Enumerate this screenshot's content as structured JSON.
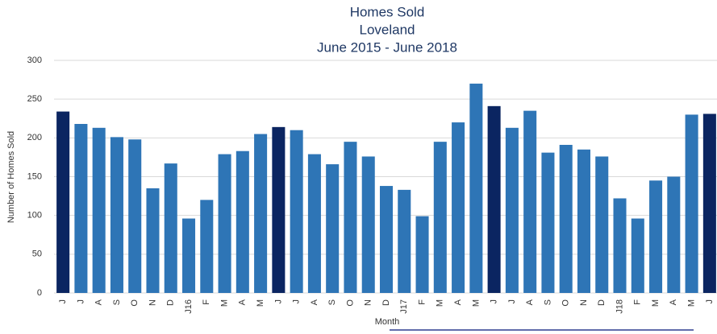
{
  "chart_data": {
    "type": "bar",
    "title": [
      "Homes Sold",
      "Loveland",
      "June 2015 - June 2018"
    ],
    "x_label": "Month",
    "y_label": "Number of Homes Sold",
    "categories": [
      "J",
      "J",
      "A",
      "S",
      "O",
      "N",
      "D",
      "J16",
      "F",
      "M",
      "A",
      "M",
      "J",
      "J",
      "A",
      "S",
      "O",
      "N",
      "D",
      "J17",
      "F",
      "M",
      "A",
      "M",
      "J",
      "J",
      "A",
      "S",
      "O",
      "N",
      "D",
      "J18",
      "F",
      "M",
      "A",
      "M",
      "J"
    ],
    "values": [
      234,
      218,
      213,
      201,
      198,
      135,
      167,
      96,
      120,
      179,
      183,
      205,
      214,
      210,
      179,
      166,
      195,
      176,
      138,
      133,
      99,
      195,
      220,
      270,
      241,
      213,
      235,
      181,
      191,
      185,
      176,
      122,
      96,
      145,
      150,
      230,
      231
    ],
    "colors": [
      "#0b2561",
      "#2e75b6",
      "#2e75b6",
      "#2e75b6",
      "#2e75b6",
      "#2e75b6",
      "#2e75b6",
      "#2e75b6",
      "#2e75b6",
      "#2e75b6",
      "#2e75b6",
      "#2e75b6",
      "#0b2561",
      "#2e75b6",
      "#2e75b6",
      "#2e75b6",
      "#2e75b6",
      "#2e75b6",
      "#2e75b6",
      "#2e75b6",
      "#2e75b6",
      "#2e75b6",
      "#2e75b6",
      "#2e75b6",
      "#0b2561",
      "#2e75b6",
      "#2e75b6",
      "#2e75b6",
      "#2e75b6",
      "#2e75b6",
      "#2e75b6",
      "#2e75b6",
      "#2e75b6",
      "#2e75b6",
      "#2e75b6",
      "#2e75b6",
      "#0b2561"
    ],
    "ylim": [
      0,
      300
    ],
    "yticks": [
      0,
      50,
      100,
      150,
      200,
      250,
      300
    ],
    "grid": true
  }
}
